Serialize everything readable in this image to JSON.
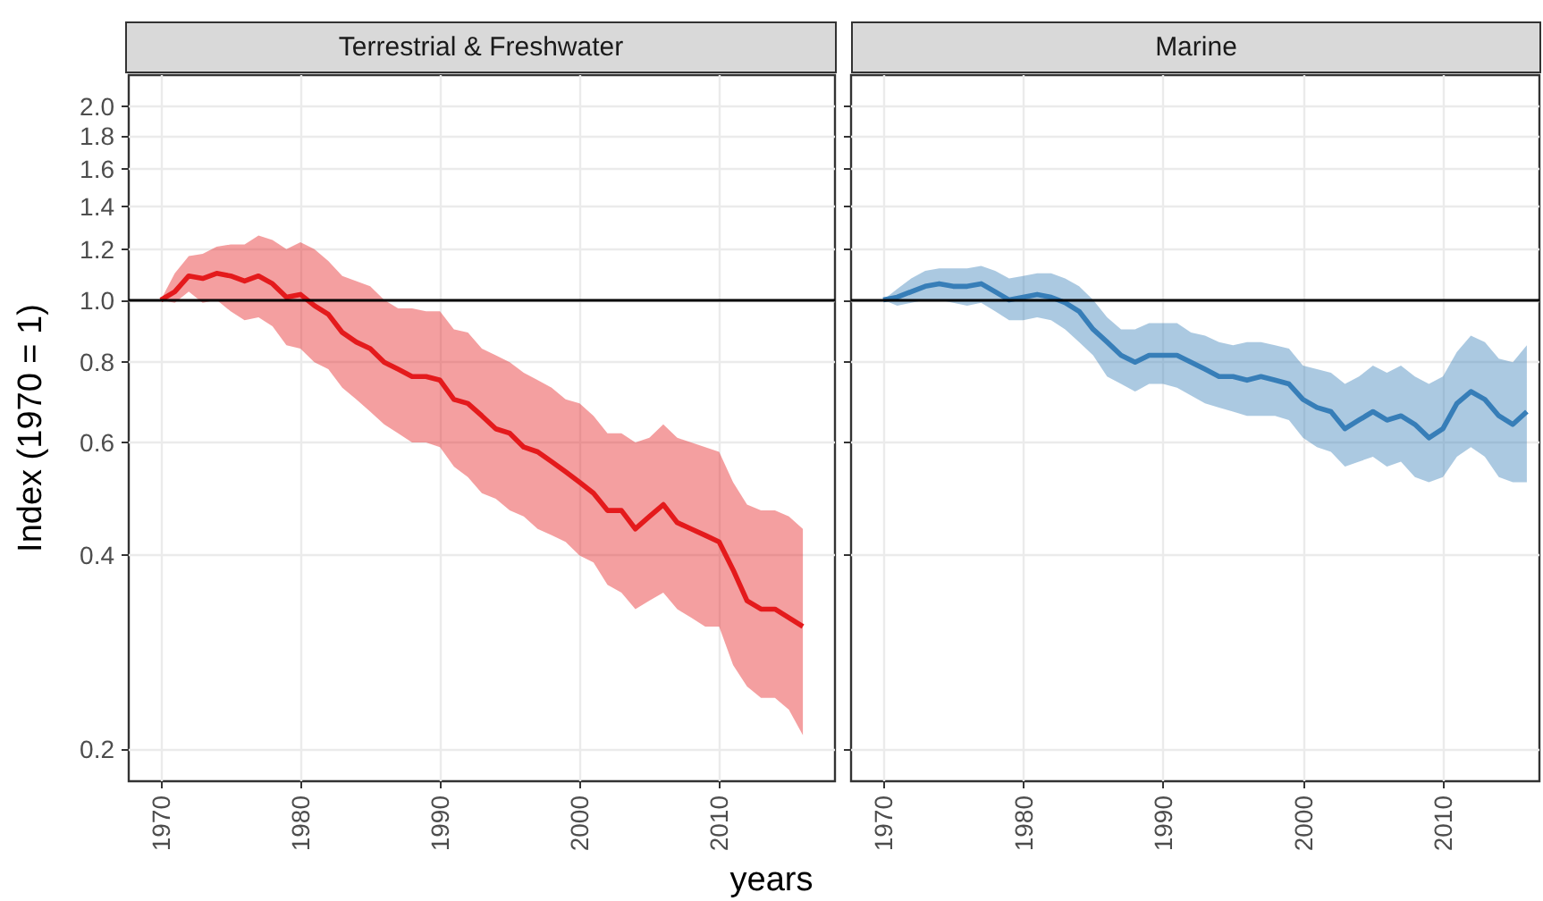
{
  "chart_data": [
    {
      "type": "line",
      "title": "Terrestrial & Freshwater",
      "xlabel": "years",
      "ylabel": "Index (1970 = 1)",
      "log": "y",
      "grid": true,
      "xlim": [
        1967.7,
        2018.3
      ],
      "ylim": [
        0.178,
        2.24
      ],
      "xticks": [
        1970,
        1980,
        1990,
        2000,
        2010
      ],
      "yticks": [
        0.2,
        0.4,
        0.6,
        0.8,
        {
          "value": 1,
          "label": "1.0"
        },
        1.2,
        1.4,
        1.6,
        1.8,
        {
          "value": 2,
          "label": "2.0"
        }
      ],
      "ref_lines": [
        {
          "axis": "y",
          "value": 1,
          "color": "#000000"
        }
      ],
      "x": [
        1970,
        1971,
        1972,
        1973,
        1974,
        1975,
        1976,
        1977,
        1978,
        1979,
        1980,
        1981,
        1982,
        1983,
        1984,
        1985,
        1986,
        1987,
        1988,
        1989,
        1990,
        1991,
        1992,
        1993,
        1994,
        1995,
        1996,
        1997,
        1998,
        1999,
        2000,
        2001,
        2002,
        2003,
        2004,
        2005,
        2006,
        2007,
        2008,
        2009,
        2010,
        2011,
        2012,
        2013,
        2014,
        2015,
        2016
      ],
      "series": [
        {
          "color": "#e41a1c",
          "values": [
            1.0,
            1.03,
            1.09,
            1.08,
            1.1,
            1.09,
            1.07,
            1.09,
            1.06,
            1.01,
            1.02,
            0.98,
            0.95,
            0.89,
            0.86,
            0.84,
            0.8,
            0.78,
            0.76,
            0.76,
            0.75,
            0.7,
            0.69,
            0.66,
            0.63,
            0.62,
            0.59,
            0.58,
            0.56,
            0.54,
            0.52,
            0.5,
            0.47,
            0.47,
            0.44,
            0.46,
            0.48,
            0.45,
            0.44,
            0.43,
            0.42,
            0.38,
            0.34,
            0.33,
            0.33,
            0.32,
            0.31
          ],
          "upper": [
            1.0,
            1.1,
            1.17,
            1.18,
            1.21,
            1.22,
            1.22,
            1.26,
            1.24,
            1.2,
            1.23,
            1.2,
            1.15,
            1.09,
            1.07,
            1.05,
            1.0,
            0.97,
            0.97,
            0.96,
            0.96,
            0.9,
            0.89,
            0.84,
            0.82,
            0.8,
            0.77,
            0.75,
            0.73,
            0.7,
            0.69,
            0.66,
            0.62,
            0.62,
            0.6,
            0.61,
            0.64,
            0.61,
            0.6,
            0.59,
            0.58,
            0.52,
            0.48,
            0.47,
            0.47,
            0.46,
            0.44
          ],
          "lower": [
            1.0,
            0.99,
            1.03,
            0.99,
            1.0,
            0.96,
            0.93,
            0.94,
            0.91,
            0.85,
            0.84,
            0.8,
            0.78,
            0.73,
            0.7,
            0.67,
            0.64,
            0.62,
            0.6,
            0.6,
            0.59,
            0.55,
            0.53,
            0.5,
            0.49,
            0.47,
            0.46,
            0.44,
            0.43,
            0.42,
            0.4,
            0.39,
            0.36,
            0.35,
            0.33,
            0.34,
            0.35,
            0.33,
            0.32,
            0.31,
            0.31,
            0.27,
            0.25,
            0.24,
            0.24,
            0.23,
            0.21
          ]
        }
      ]
    },
    {
      "type": "line",
      "title": "Marine",
      "log": "y",
      "grid": true,
      "tick_labels": "x",
      "xlim": [
        1967.7,
        2016.9
      ],
      "ylim": [
        0.178,
        2.24
      ],
      "xticks": [
        1970,
        1980,
        1990,
        2000,
        2010
      ],
      "yticks": [
        0.2,
        0.4,
        0.6,
        0.8,
        1,
        1.2,
        1.4,
        1.6,
        1.8,
        2
      ],
      "ref_lines": [
        {
          "axis": "y",
          "value": 1,
          "color": "#000000"
        }
      ],
      "x": [
        1970,
        1971,
        1972,
        1973,
        1974,
        1975,
        1976,
        1977,
        1978,
        1979,
        1980,
        1981,
        1982,
        1983,
        1984,
        1985,
        1986,
        1987,
        1988,
        1989,
        1990,
        1991,
        1992,
        1993,
        1994,
        1995,
        1996,
        1997,
        1998,
        1999,
        2000,
        2001,
        2002,
        2003,
        2004,
        2005,
        2006,
        2007,
        2008,
        2009,
        2010,
        2011,
        2012,
        2013,
        2014,
        2015,
        2016
      ],
      "series": [
        {
          "color": "#377eb8",
          "values": [
            1.0,
            1.01,
            1.03,
            1.05,
            1.06,
            1.05,
            1.05,
            1.06,
            1.03,
            1.0,
            1.01,
            1.02,
            1.01,
            0.99,
            0.96,
            0.9,
            0.86,
            0.82,
            0.8,
            0.82,
            0.82,
            0.82,
            0.8,
            0.78,
            0.76,
            0.76,
            0.75,
            0.76,
            0.75,
            0.74,
            0.7,
            0.68,
            0.67,
            0.63,
            0.65,
            0.67,
            0.65,
            0.66,
            0.64,
            0.61,
            0.63,
            0.69,
            0.72,
            0.7,
            0.66,
            0.64,
            0.67
          ],
          "upper": [
            1.0,
            1.04,
            1.08,
            1.11,
            1.12,
            1.12,
            1.12,
            1.13,
            1.11,
            1.08,
            1.09,
            1.1,
            1.1,
            1.08,
            1.05,
            1.0,
            0.94,
            0.9,
            0.9,
            0.92,
            0.92,
            0.92,
            0.89,
            0.88,
            0.86,
            0.85,
            0.86,
            0.86,
            0.85,
            0.84,
            0.79,
            0.78,
            0.77,
            0.74,
            0.76,
            0.79,
            0.77,
            0.79,
            0.76,
            0.74,
            0.76,
            0.83,
            0.88,
            0.86,
            0.81,
            0.8,
            0.85
          ],
          "lower": [
            1.0,
            0.98,
            0.99,
            1.0,
            1.0,
            0.99,
            0.98,
            0.99,
            0.96,
            0.93,
            0.93,
            0.94,
            0.93,
            0.9,
            0.86,
            0.82,
            0.76,
            0.74,
            0.72,
            0.74,
            0.74,
            0.73,
            0.71,
            0.69,
            0.68,
            0.67,
            0.66,
            0.66,
            0.66,
            0.65,
            0.61,
            0.59,
            0.58,
            0.55,
            0.56,
            0.57,
            0.55,
            0.56,
            0.53,
            0.52,
            0.53,
            0.57,
            0.59,
            0.57,
            0.53,
            0.52,
            0.52
          ]
        }
      ]
    }
  ]
}
